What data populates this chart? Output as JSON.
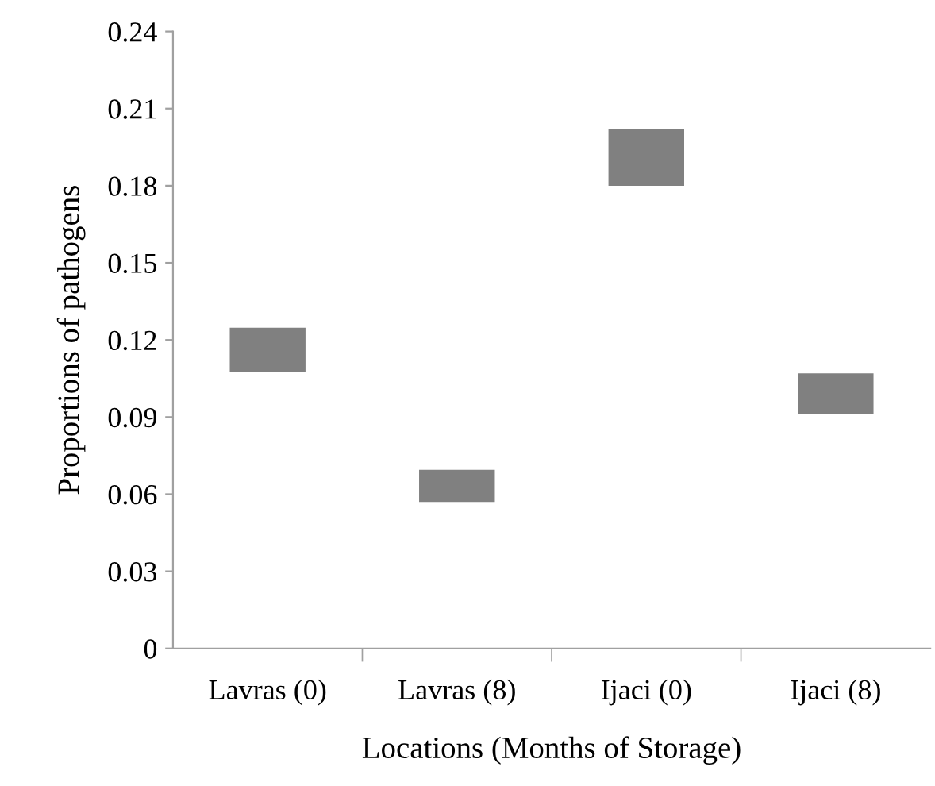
{
  "chart_data": {
    "type": "bar",
    "xlabel": "Locations (Months of Storage)",
    "ylabel": "Proportions of pathogens",
    "categories": [
      "Lavras (0)",
      "Lavras (8)",
      "Ijaci (0)",
      "Ijaci (8)"
    ],
    "base": [
      0.1075,
      0.057,
      0.18,
      0.091
    ],
    "values": [
      0.0173,
      0.0125,
      0.022,
      0.016
    ],
    "color": "#808080",
    "ylim": [
      0,
      0.24
    ],
    "yticks": [
      {
        "value": 0,
        "label": "0"
      },
      {
        "value": 0.03,
        "label": "0.03"
      },
      {
        "value": 0.06,
        "label": "0.06"
      },
      {
        "value": 0.09,
        "label": "0.09"
      },
      {
        "value": 0.12,
        "label": "0.12"
      },
      {
        "value": 0.15,
        "label": "0.15"
      },
      {
        "value": 0.18,
        "label": "0.18"
      },
      {
        "value": 0.21,
        "label": "0.21"
      },
      {
        "value": 0.24,
        "label": "0.24"
      }
    ],
    "grid": false,
    "legend": false
  }
}
